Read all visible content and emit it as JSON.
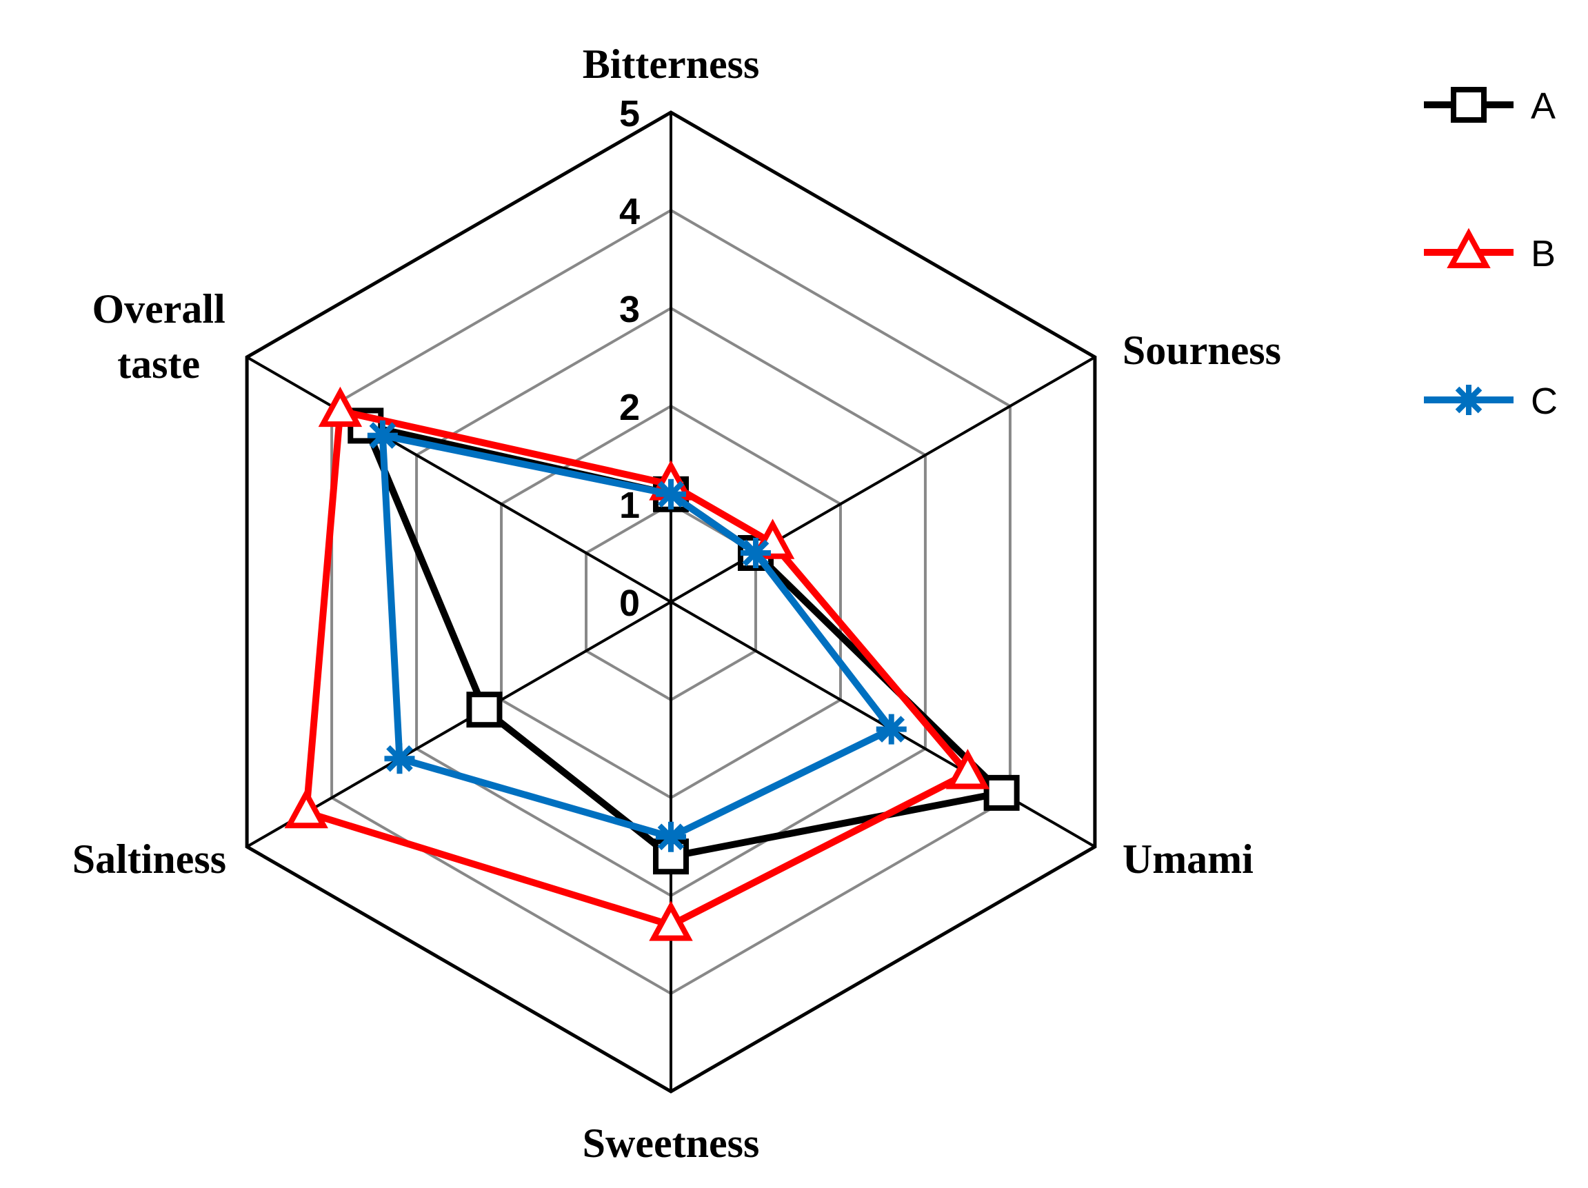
{
  "chart_data": {
    "type": "radar",
    "axes": [
      "Bitterness",
      "Sourness",
      "Umami",
      "Sweetness",
      "Saltiness",
      "Overall taste"
    ],
    "rmin": 0,
    "rmax": 5,
    "ticks": [
      "0",
      "1",
      "2",
      "3",
      "4",
      "5"
    ],
    "grid": true,
    "legend_position": "top-right",
    "series": [
      {
        "name": "A",
        "color": "#000000",
        "marker": "square",
        "values": [
          1.1,
          1.0,
          3.9,
          2.6,
          2.2,
          3.6
        ]
      },
      {
        "name": "B",
        "color": "#ff0000",
        "marker": "triangle",
        "values": [
          1.2,
          1.2,
          3.5,
          3.3,
          4.3,
          3.9
        ]
      },
      {
        "name": "C",
        "color": "#0070c0",
        "marker": "star",
        "values": [
          1.1,
          1.0,
          2.6,
          2.4,
          3.2,
          3.4
        ]
      }
    ]
  }
}
